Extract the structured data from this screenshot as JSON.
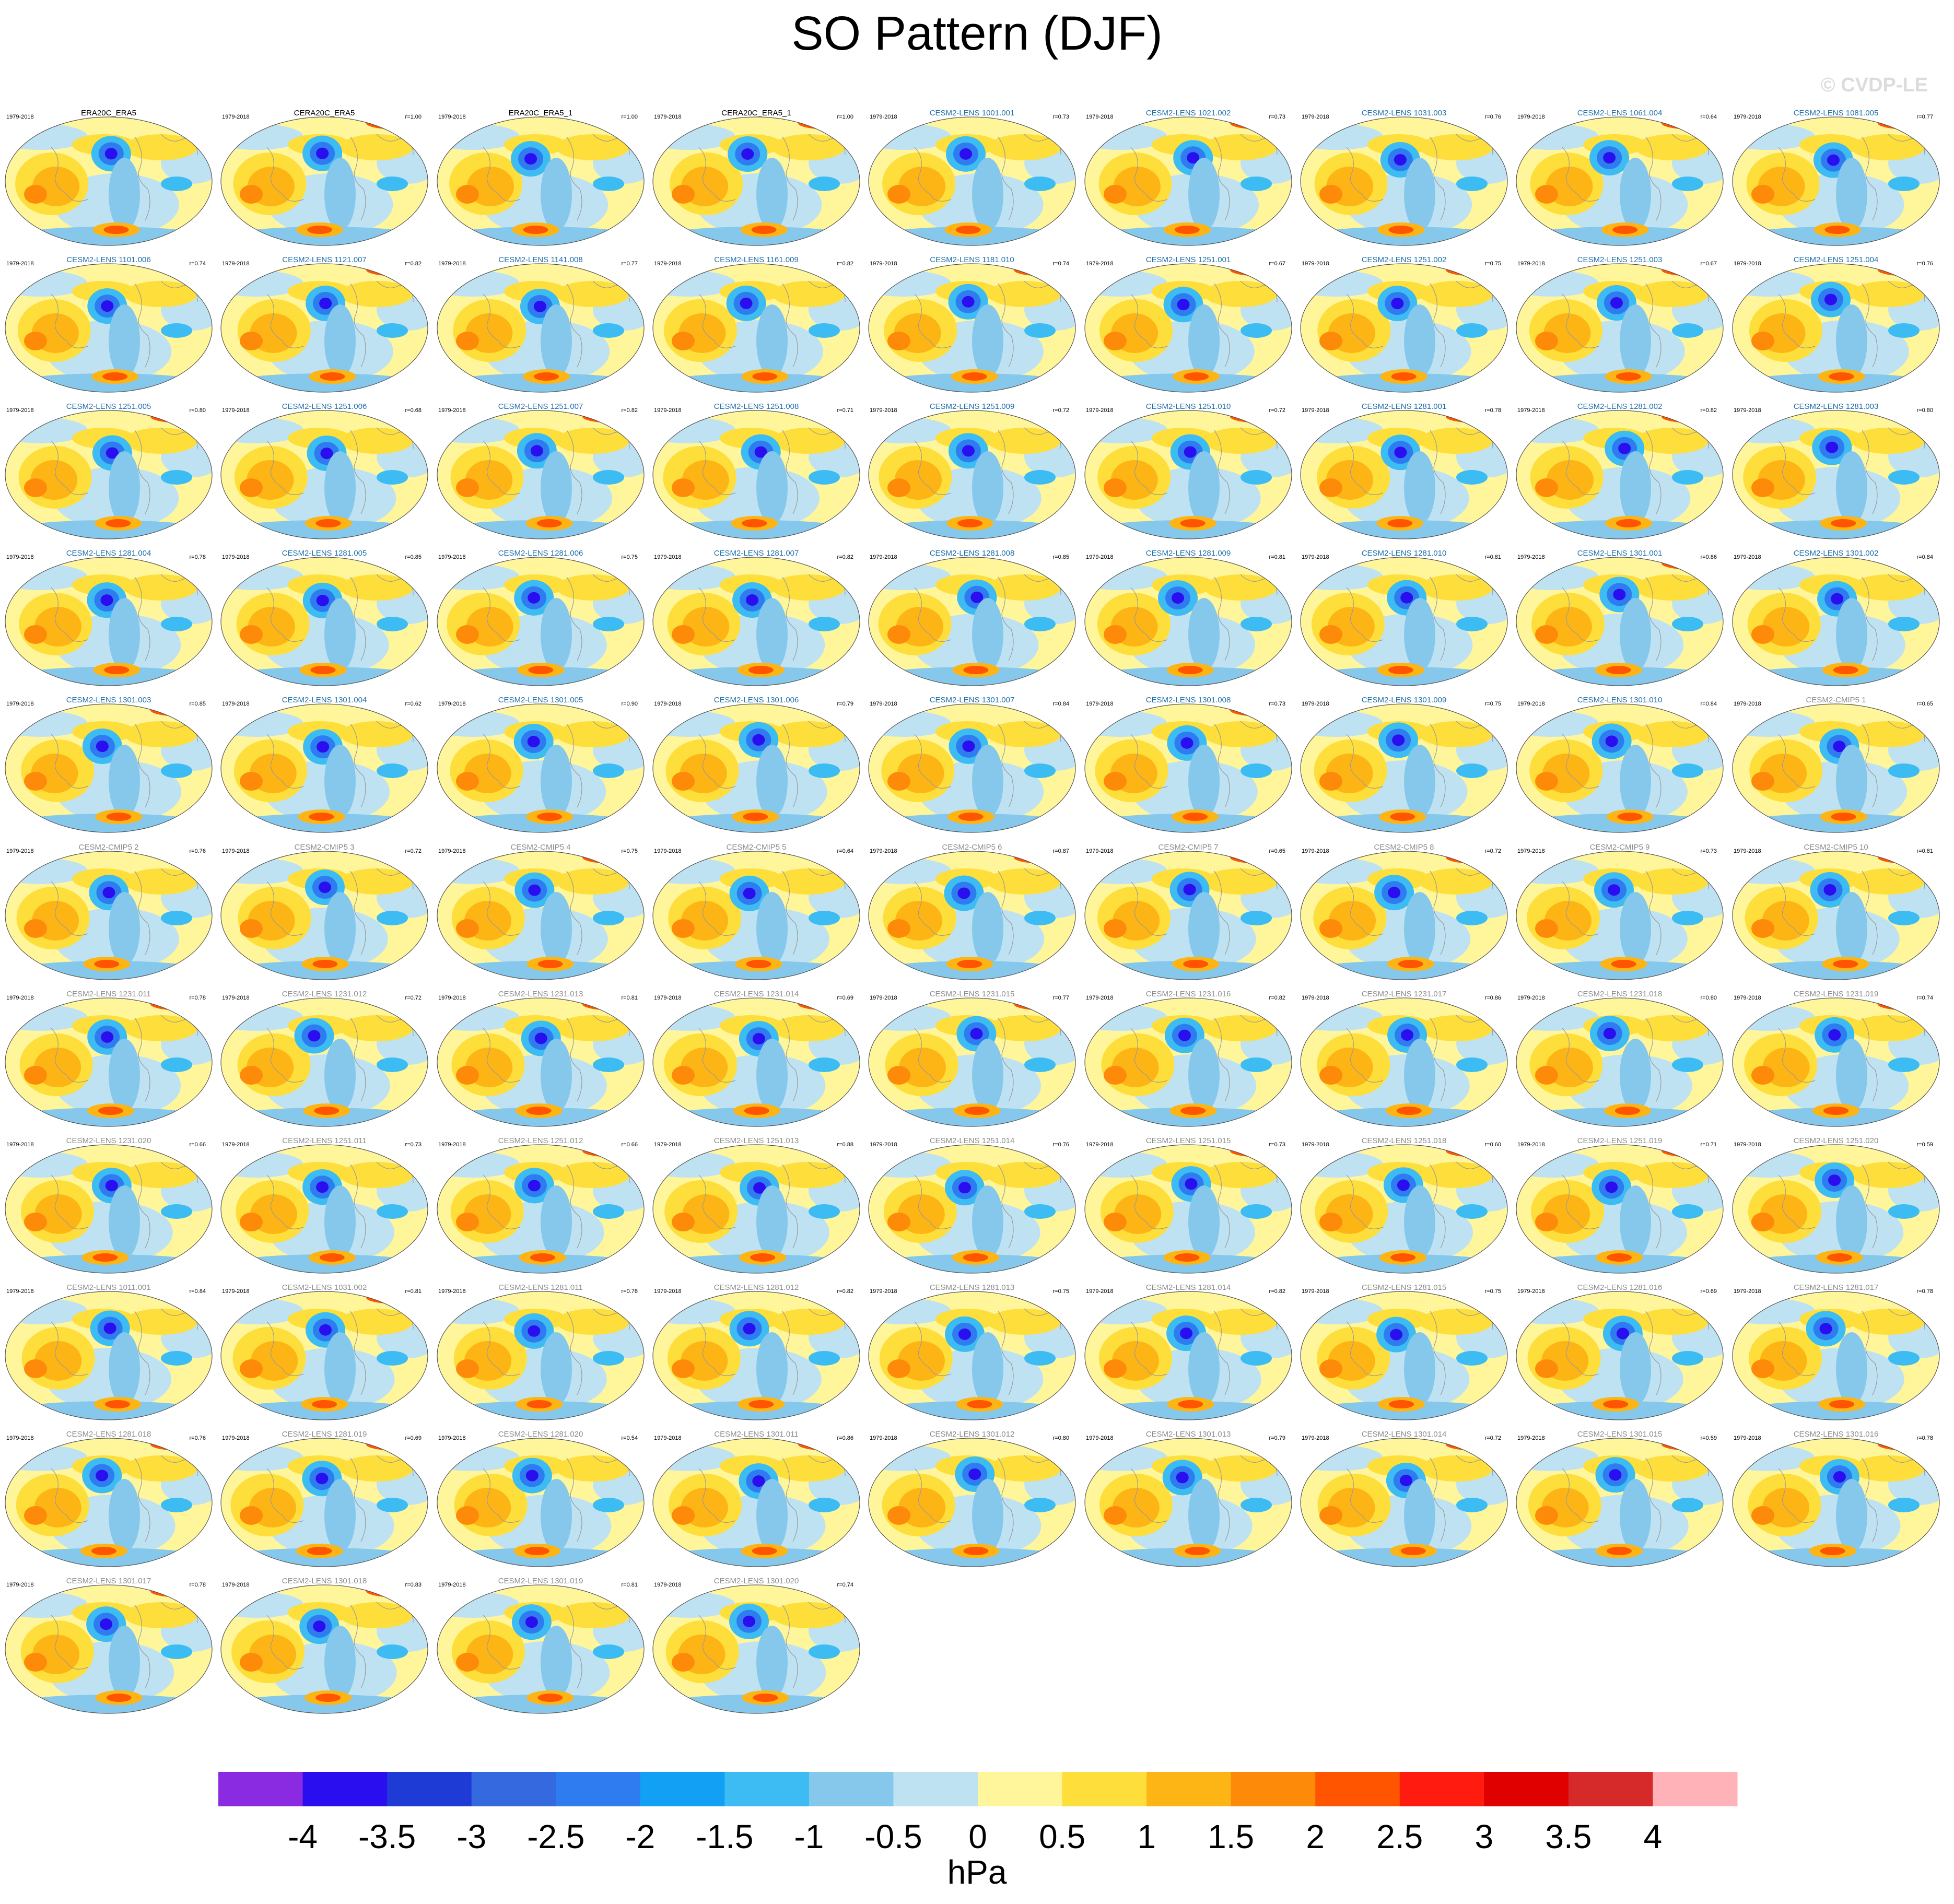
{
  "title": "SO Pattern (DJF)",
  "copyright": "© CVDP-LE",
  "period": "1979-2018",
  "colors": {
    "obs_label": "#000000",
    "lens_label": "#1f6fa8",
    "other_label": "#8c8c8c"
  },
  "panels": [
    {
      "name": "ERA20C_ERA5",
      "corr": "",
      "group": "obs"
    },
    {
      "name": "CERA20C_ERA5",
      "corr": "r=1.00",
      "group": "obs"
    },
    {
      "name": "ERA20C_ERA5_1",
      "corr": "r=1.00",
      "group": "obs"
    },
    {
      "name": "CERA20C_ERA5_1",
      "corr": "r=1.00",
      "group": "obs"
    },
    {
      "name": "CESM2-LENS 1001.001",
      "corr": "r=0.73",
      "group": "lens"
    },
    {
      "name": "CESM2-LENS 1021.002",
      "corr": "r=0.73",
      "group": "lens"
    },
    {
      "name": "CESM2-LENS 1031.003",
      "corr": "r=0.76",
      "group": "lens"
    },
    {
      "name": "CESM2-LENS 1061.004",
      "corr": "r=0.64",
      "group": "lens"
    },
    {
      "name": "CESM2-LENS 1081.005",
      "corr": "r=0.77",
      "group": "lens"
    },
    {
      "name": "CESM2-LENS 1101.006",
      "corr": "r=0.74",
      "group": "lens"
    },
    {
      "name": "CESM2-LENS 1121.007",
      "corr": "r=0.82",
      "group": "lens"
    },
    {
      "name": "CESM2-LENS 1141.008",
      "corr": "r=0.77",
      "group": "lens"
    },
    {
      "name": "CESM2-LENS 1161.009",
      "corr": "r=0.82",
      "group": "lens"
    },
    {
      "name": "CESM2-LENS 1181.010",
      "corr": "r=0.74",
      "group": "lens"
    },
    {
      "name": "CESM2-LENS 1251.001",
      "corr": "r=0.67",
      "group": "lens"
    },
    {
      "name": "CESM2-LENS 1251.002",
      "corr": "r=0.75",
      "group": "lens"
    },
    {
      "name": "CESM2-LENS 1251.003",
      "corr": "r=0.67",
      "group": "lens"
    },
    {
      "name": "CESM2-LENS 1251.004",
      "corr": "r=0.76",
      "group": "lens"
    },
    {
      "name": "CESM2-LENS 1251.005",
      "corr": "r=0.80",
      "group": "lens"
    },
    {
      "name": "CESM2-LENS 1251.006",
      "corr": "r=0.68",
      "group": "lens"
    },
    {
      "name": "CESM2-LENS 1251.007",
      "corr": "r=0.82",
      "group": "lens"
    },
    {
      "name": "CESM2-LENS 1251.008",
      "corr": "r=0.71",
      "group": "lens"
    },
    {
      "name": "CESM2-LENS 1251.009",
      "corr": "r=0.72",
      "group": "lens"
    },
    {
      "name": "CESM2-LENS 1251.010",
      "corr": "r=0.72",
      "group": "lens"
    },
    {
      "name": "CESM2-LENS 1281.001",
      "corr": "r=0.78",
      "group": "lens"
    },
    {
      "name": "CESM2-LENS 1281.002",
      "corr": "r=0.82",
      "group": "lens"
    },
    {
      "name": "CESM2-LENS 1281.003",
      "corr": "r=0.80",
      "group": "lens"
    },
    {
      "name": "CESM2-LENS 1281.004",
      "corr": "r=0.78",
      "group": "lens"
    },
    {
      "name": "CESM2-LENS 1281.005",
      "corr": "r=0.85",
      "group": "lens"
    },
    {
      "name": "CESM2-LENS 1281.006",
      "corr": "r=0.75",
      "group": "lens"
    },
    {
      "name": "CESM2-LENS 1281.007",
      "corr": "r=0.82",
      "group": "lens"
    },
    {
      "name": "CESM2-LENS 1281.008",
      "corr": "r=0.85",
      "group": "lens"
    },
    {
      "name": "CESM2-LENS 1281.009",
      "corr": "r=0.81",
      "group": "lens"
    },
    {
      "name": "CESM2-LENS 1281.010",
      "corr": "r=0.81",
      "group": "lens"
    },
    {
      "name": "CESM2-LENS 1301.001",
      "corr": "r=0.86",
      "group": "lens"
    },
    {
      "name": "CESM2-LENS 1301.002",
      "corr": "r=0.84",
      "group": "lens"
    },
    {
      "name": "CESM2-LENS 1301.003",
      "corr": "r=0.85",
      "group": "lens"
    },
    {
      "name": "CESM2-LENS 1301.004",
      "corr": "r=0.62",
      "group": "lens"
    },
    {
      "name": "CESM2-LENS 1301.005",
      "corr": "r=0.90",
      "group": "lens"
    },
    {
      "name": "CESM2-LENS 1301.006",
      "corr": "r=0.79",
      "group": "lens"
    },
    {
      "name": "CESM2-LENS 1301.007",
      "corr": "r=0.84",
      "group": "lens"
    },
    {
      "name": "CESM2-LENS 1301.008",
      "corr": "r=0.73",
      "group": "lens"
    },
    {
      "name": "CESM2-LENS 1301.009",
      "corr": "r=0.75",
      "group": "lens"
    },
    {
      "name": "CESM2-LENS 1301.010",
      "corr": "r=0.84",
      "group": "lens"
    },
    {
      "name": "CESM2-CMIP5 1",
      "corr": "r=0.65",
      "group": "other"
    },
    {
      "name": "CESM2-CMIP5 2",
      "corr": "r=0.76",
      "group": "other"
    },
    {
      "name": "CESM2-CMIP5 3",
      "corr": "r=0.72",
      "group": "other"
    },
    {
      "name": "CESM2-CMIP5 4",
      "corr": "r=0.75",
      "group": "other"
    },
    {
      "name": "CESM2-CMIP5 5",
      "corr": "r=0.64",
      "group": "other"
    },
    {
      "name": "CESM2-CMIP5 6",
      "corr": "r=0.87",
      "group": "other"
    },
    {
      "name": "CESM2-CMIP5 7",
      "corr": "r=0.65",
      "group": "other"
    },
    {
      "name": "CESM2-CMIP5 8",
      "corr": "r=0.72",
      "group": "other"
    },
    {
      "name": "CESM2-CMIP5 9",
      "corr": "r=0.73",
      "group": "other"
    },
    {
      "name": "CESM2-CMIP5 10",
      "corr": "r=0.81",
      "group": "other"
    },
    {
      "name": "CESM2-LENS 1231.011",
      "corr": "r=0.78",
      "group": "other"
    },
    {
      "name": "CESM2-LENS 1231.012",
      "corr": "r=0.72",
      "group": "other"
    },
    {
      "name": "CESM2-LENS 1231.013",
      "corr": "r=0.81",
      "group": "other"
    },
    {
      "name": "CESM2-LENS 1231.014",
      "corr": "r=0.69",
      "group": "other"
    },
    {
      "name": "CESM2-LENS 1231.015",
      "corr": "r=0.77",
      "group": "other"
    },
    {
      "name": "CESM2-LENS 1231.016",
      "corr": "r=0.82",
      "group": "other"
    },
    {
      "name": "CESM2-LENS 1231.017",
      "corr": "r=0.86",
      "group": "other"
    },
    {
      "name": "CESM2-LENS 1231.018",
      "corr": "r=0.80",
      "group": "other"
    },
    {
      "name": "CESM2-LENS 1231.019",
      "corr": "r=0.74",
      "group": "other"
    },
    {
      "name": "CESM2-LENS 1231.020",
      "corr": "r=0.66",
      "group": "other"
    },
    {
      "name": "CESM2-LENS 1251.011",
      "corr": "r=0.73",
      "group": "other"
    },
    {
      "name": "CESM2-LENS 1251.012",
      "corr": "r=0.66",
      "group": "other"
    },
    {
      "name": "CESM2-LENS 1251.013",
      "corr": "r=0.88",
      "group": "other"
    },
    {
      "name": "CESM2-LENS 1251.014",
      "corr": "r=0.76",
      "group": "other"
    },
    {
      "name": "CESM2-LENS 1251.015",
      "corr": "r=0.73",
      "group": "other"
    },
    {
      "name": "CESM2-LENS 1251.018",
      "corr": "r=0.60",
      "group": "other"
    },
    {
      "name": "CESM2-LENS 1251.019",
      "corr": "r=0.71",
      "group": "other"
    },
    {
      "name": "CESM2-LENS 1251.020",
      "corr": "r=0.59",
      "group": "other"
    },
    {
      "name": "CESM2-LENS 1011.001",
      "corr": "r=0.84",
      "group": "other"
    },
    {
      "name": "CESM2-LENS 1031.002",
      "corr": "r=0.81",
      "group": "other"
    },
    {
      "name": "CESM2-LENS 1281.011",
      "corr": "r=0.78",
      "group": "other"
    },
    {
      "name": "CESM2-LENS 1281.012",
      "corr": "r=0.82",
      "group": "other"
    },
    {
      "name": "CESM2-LENS 1281.013",
      "corr": "r=0.75",
      "group": "other"
    },
    {
      "name": "CESM2-LENS 1281.014",
      "corr": "r=0.82",
      "group": "other"
    },
    {
      "name": "CESM2-LENS 1281.015",
      "corr": "r=0.75",
      "group": "other"
    },
    {
      "name": "CESM2-LENS 1281.016",
      "corr": "r=0.69",
      "group": "other"
    },
    {
      "name": "CESM2-LENS 1281.017",
      "corr": "r=0.78",
      "group": "other"
    },
    {
      "name": "CESM2-LENS 1281.018",
      "corr": "r=0.76",
      "group": "other"
    },
    {
      "name": "CESM2-LENS 1281.019",
      "corr": "r=0.69",
      "group": "other"
    },
    {
      "name": "CESM2-LENS 1281.020",
      "corr": "r=0.54",
      "group": "other"
    },
    {
      "name": "CESM2-LENS 1301.011",
      "corr": "r=0.86",
      "group": "other"
    },
    {
      "name": "CESM2-LENS 1301.012",
      "corr": "r=0.80",
      "group": "other"
    },
    {
      "name": "CESM2-LENS 1301.013",
      "corr": "r=0.79",
      "group": "other"
    },
    {
      "name": "CESM2-LENS 1301.014",
      "corr": "r=0.72",
      "group": "other"
    },
    {
      "name": "CESM2-LENS 1301.015",
      "corr": "r=0.59",
      "group": "other"
    },
    {
      "name": "CESM2-LENS 1301.016",
      "corr": "r=0.78",
      "group": "other"
    },
    {
      "name": "CESM2-LENS 1301.017",
      "corr": "r=0.78",
      "group": "other"
    },
    {
      "name": "CESM2-LENS 1301.018",
      "corr": "r=0.83",
      "group": "other"
    },
    {
      "name": "CESM2-LENS 1301.019",
      "corr": "r=0.81",
      "group": "other"
    },
    {
      "name": "CESM2-LENS 1301.020",
      "corr": "r=0.74",
      "group": "other"
    }
  ],
  "colorbar": {
    "colors": [
      "#8a2be2",
      "#2a0ef0",
      "#1f3bd6",
      "#3569df",
      "#2f7cf0",
      "#12a0f5",
      "#3cbcf3",
      "#86c8ec",
      "#bfe2f3",
      "#fff59b",
      "#fede3a",
      "#fdb515",
      "#fe8a0a",
      "#ff5500",
      "#ff1b10",
      "#e00000",
      "#d62a2a",
      "#ffb3b8"
    ],
    "ticks": [
      "-4",
      "-3.5",
      "-3",
      "-2.5",
      "-2",
      "-1.5",
      "-1",
      "-0.5",
      "0",
      "0.5",
      "1",
      "1.5",
      "2",
      "2.5",
      "3",
      "3.5",
      "4"
    ],
    "units": "hPa"
  }
}
